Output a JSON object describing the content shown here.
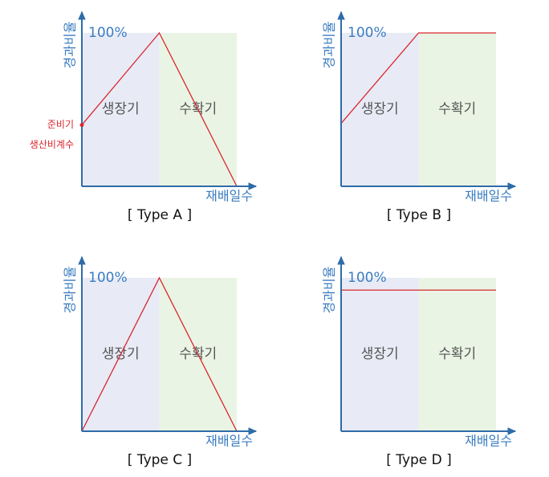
{
  "chart_data": [
    {
      "type": "line",
      "title": "[ Type A ]",
      "ylabel": "경과비율",
      "xlabel": "재배일수",
      "xlim": [
        0,
        100
      ],
      "ylim": [
        0,
        100
      ],
      "yticks": [
        {
          "value": 100,
          "label": "100%"
        }
      ],
      "regions": [
        {
          "name": "생장기",
          "from": 0,
          "to": 50,
          "color": "#e8ebf6"
        },
        {
          "name": "수확기",
          "from": 50,
          "to": 100,
          "color": "#eaf4e4"
        }
      ],
      "x": [
        0,
        50,
        100
      ],
      "values": [
        40,
        100,
        0
      ],
      "color": "#d9272e",
      "annotation": [
        "준비기",
        "생산비계수"
      ]
    },
    {
      "type": "line",
      "title": "[ Type B ]",
      "ylabel": "경과비율",
      "xlabel": "재배일수",
      "xlim": [
        0,
        100
      ],
      "ylim": [
        0,
        100
      ],
      "yticks": [
        {
          "value": 100,
          "label": "100%"
        }
      ],
      "regions": [
        {
          "name": "생장기",
          "from": 0,
          "to": 50,
          "color": "#e8ebf6"
        },
        {
          "name": "수확기",
          "from": 50,
          "to": 100,
          "color": "#eaf4e4"
        }
      ],
      "x": [
        0,
        50,
        100
      ],
      "values": [
        41,
        100,
        100
      ],
      "color": "#d9272e"
    },
    {
      "type": "line",
      "title": "[ Type C ]",
      "ylabel": "경과비율",
      "xlabel": "재배일수",
      "xlim": [
        0,
        100
      ],
      "ylim": [
        0,
        100
      ],
      "yticks": [
        {
          "value": 100,
          "label": "100%"
        }
      ],
      "regions": [
        {
          "name": "생장기",
          "from": 0,
          "to": 50,
          "color": "#e8ebf6"
        },
        {
          "name": "수확기",
          "from": 50,
          "to": 100,
          "color": "#eaf4e4"
        }
      ],
      "x": [
        0,
        50,
        100
      ],
      "values": [
        0,
        100,
        0
      ],
      "color": "#d9272e"
    },
    {
      "type": "line",
      "title": "[ Type D ]",
      "ylabel": "경과비율",
      "xlabel": "재배일수",
      "xlim": [
        0,
        100
      ],
      "ylim": [
        0,
        100
      ],
      "yticks": [
        {
          "value": 100,
          "label": "100%"
        }
      ],
      "regions": [
        {
          "name": "생장기",
          "from": 0,
          "to": 50,
          "color": "#e8ebf6"
        },
        {
          "name": "수확기",
          "from": 50,
          "to": 100,
          "color": "#eaf4e4"
        }
      ],
      "x": [
        0,
        100
      ],
      "values": [
        92,
        92
      ],
      "color": "#d9272e"
    }
  ]
}
